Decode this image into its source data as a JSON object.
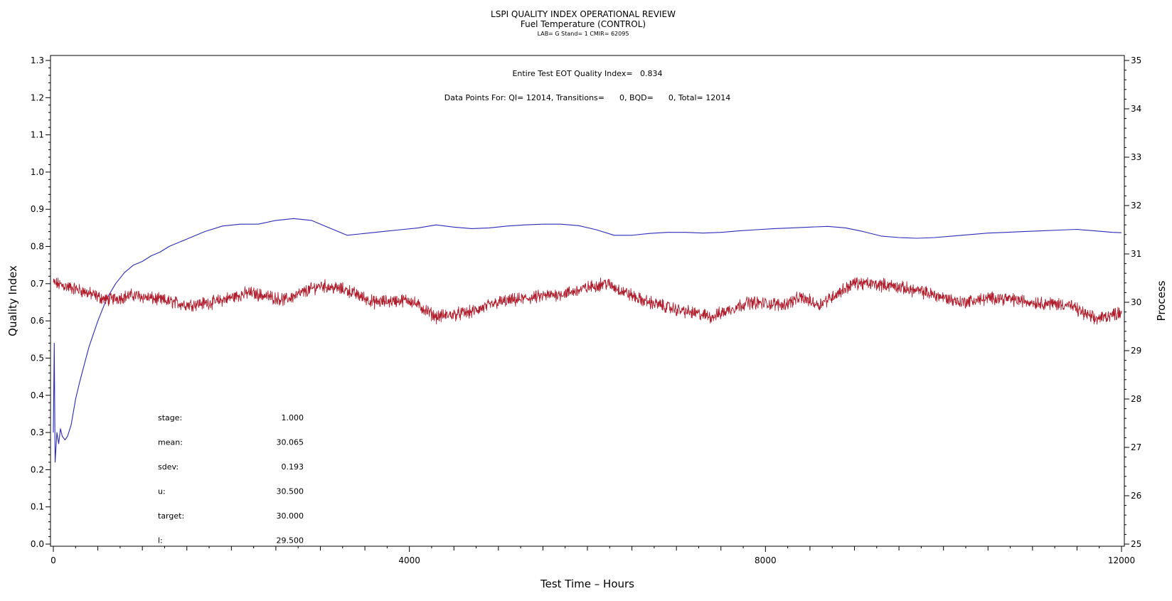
{
  "chart_data": {
    "type": "line",
    "title": "LSPI QUALITY INDEX OPERATIONAL REVIEW",
    "subtitle": "Fuel Temperature (CONTROL)",
    "subtitle2": "LAB= G Stand= 1 CMIR= 62095",
    "xlabel": "Test Time – Hours",
    "ylabel_left": "Quality Index",
    "ylabel_right": "Process",
    "xlim": [
      0,
      12000
    ],
    "ylim_left": [
      0.0,
      1.3
    ],
    "ylim_right": [
      25,
      35
    ],
    "x_major_ticks": [
      0,
      4000,
      8000,
      12000
    ],
    "x_tick_labels": [
      "0",
      "4000",
      "8000",
      "12000"
    ],
    "y_left_tick_labels": [
      "0.0",
      "0.1",
      "0.2",
      "0.3",
      "0.4",
      "0.5",
      "0.6",
      "0.7",
      "0.8",
      "0.9",
      "1.0",
      "1.1",
      "1.2",
      "1.3"
    ],
    "y_right_tick_labels": [
      "25",
      "26",
      "27",
      "28",
      "29",
      "30",
      "31",
      "32",
      "33",
      "34",
      "35"
    ],
    "header_annotation": "Entire Test EOT Quality Index=   0.834",
    "points_annotation": "Data Points For: QI= 12014, Transitions=      0, BQD=      0, Total= 12014",
    "stats": [
      {
        "label": "stage:",
        "value": "1.000"
      },
      {
        "label": "mean:",
        "value": "30.065"
      },
      {
        "label": "sdev:",
        "value": "0.193"
      },
      {
        "label": "u:",
        "value": "30.500"
      },
      {
        "label": "target:",
        "value": "30.000"
      },
      {
        "label": "l:",
        "value": "29.500"
      }
    ],
    "grid": false,
    "series": [
      {
        "axis": "left",
        "color": "#2b2bb8",
        "x": [
          0,
          10,
          20,
          40,
          60,
          80,
          100,
          130,
          160,
          200,
          250,
          300,
          400,
          500,
          600,
          700,
          800,
          900,
          1000,
          1100,
          1200,
          1300,
          1500,
          1700,
          1900,
          2100,
          2300,
          2500,
          2700,
          2900,
          3100,
          3300,
          3500,
          3700,
          3900,
          4100,
          4300,
          4500,
          4700,
          4900,
          5100,
          5300,
          5500,
          5700,
          5900,
          6100,
          6300,
          6500,
          6700,
          6900,
          7100,
          7300,
          7500,
          7700,
          7900,
          8100,
          8300,
          8500,
          8700,
          8900,
          9100,
          9300,
          9500,
          9700,
          9900,
          10100,
          10300,
          10500,
          10700,
          10900,
          11100,
          11300,
          11500,
          11700,
          11900,
          12000
        ],
        "values": [
          0.3,
          0.54,
          0.22,
          0.3,
          0.27,
          0.31,
          0.29,
          0.28,
          0.29,
          0.32,
          0.39,
          0.44,
          0.53,
          0.6,
          0.66,
          0.7,
          0.73,
          0.75,
          0.76,
          0.775,
          0.785,
          0.8,
          0.82,
          0.84,
          0.855,
          0.86,
          0.86,
          0.87,
          0.875,
          0.87,
          0.85,
          0.83,
          0.835,
          0.84,
          0.845,
          0.85,
          0.858,
          0.852,
          0.848,
          0.85,
          0.855,
          0.858,
          0.86,
          0.86,
          0.856,
          0.845,
          0.83,
          0.83,
          0.835,
          0.838,
          0.838,
          0.836,
          0.838,
          0.842,
          0.845,
          0.848,
          0.85,
          0.852,
          0.854,
          0.85,
          0.84,
          0.828,
          0.824,
          0.822,
          0.824,
          0.828,
          0.832,
          0.836,
          0.838,
          0.84,
          0.842,
          0.844,
          0.846,
          0.842,
          0.838,
          0.837
        ]
      },
      {
        "axis": "right",
        "color": "#b01e2d",
        "noise": 0.1,
        "x": [
          0,
          300,
          600,
          900,
          1200,
          1500,
          1800,
          2200,
          2600,
          3000,
          3300,
          3600,
          4000,
          4300,
          4700,
          5000,
          5400,
          5800,
          6200,
          6600,
          7000,
          7400,
          7800,
          8200,
          8400,
          8600,
          9000,
          9400,
          9800,
          10200,
          10600,
          11000,
          11400,
          11700,
          12000
        ],
        "values": [
          30.4,
          30.25,
          30.05,
          30.15,
          30.05,
          29.95,
          30.0,
          30.2,
          30.05,
          30.35,
          30.25,
          30.0,
          30.05,
          29.7,
          29.8,
          30.0,
          30.1,
          30.2,
          30.4,
          30.05,
          29.85,
          29.7,
          30.0,
          29.95,
          30.1,
          29.95,
          30.4,
          30.35,
          30.2,
          30.0,
          30.1,
          30.0,
          29.95,
          29.65,
          29.8
        ]
      }
    ]
  }
}
